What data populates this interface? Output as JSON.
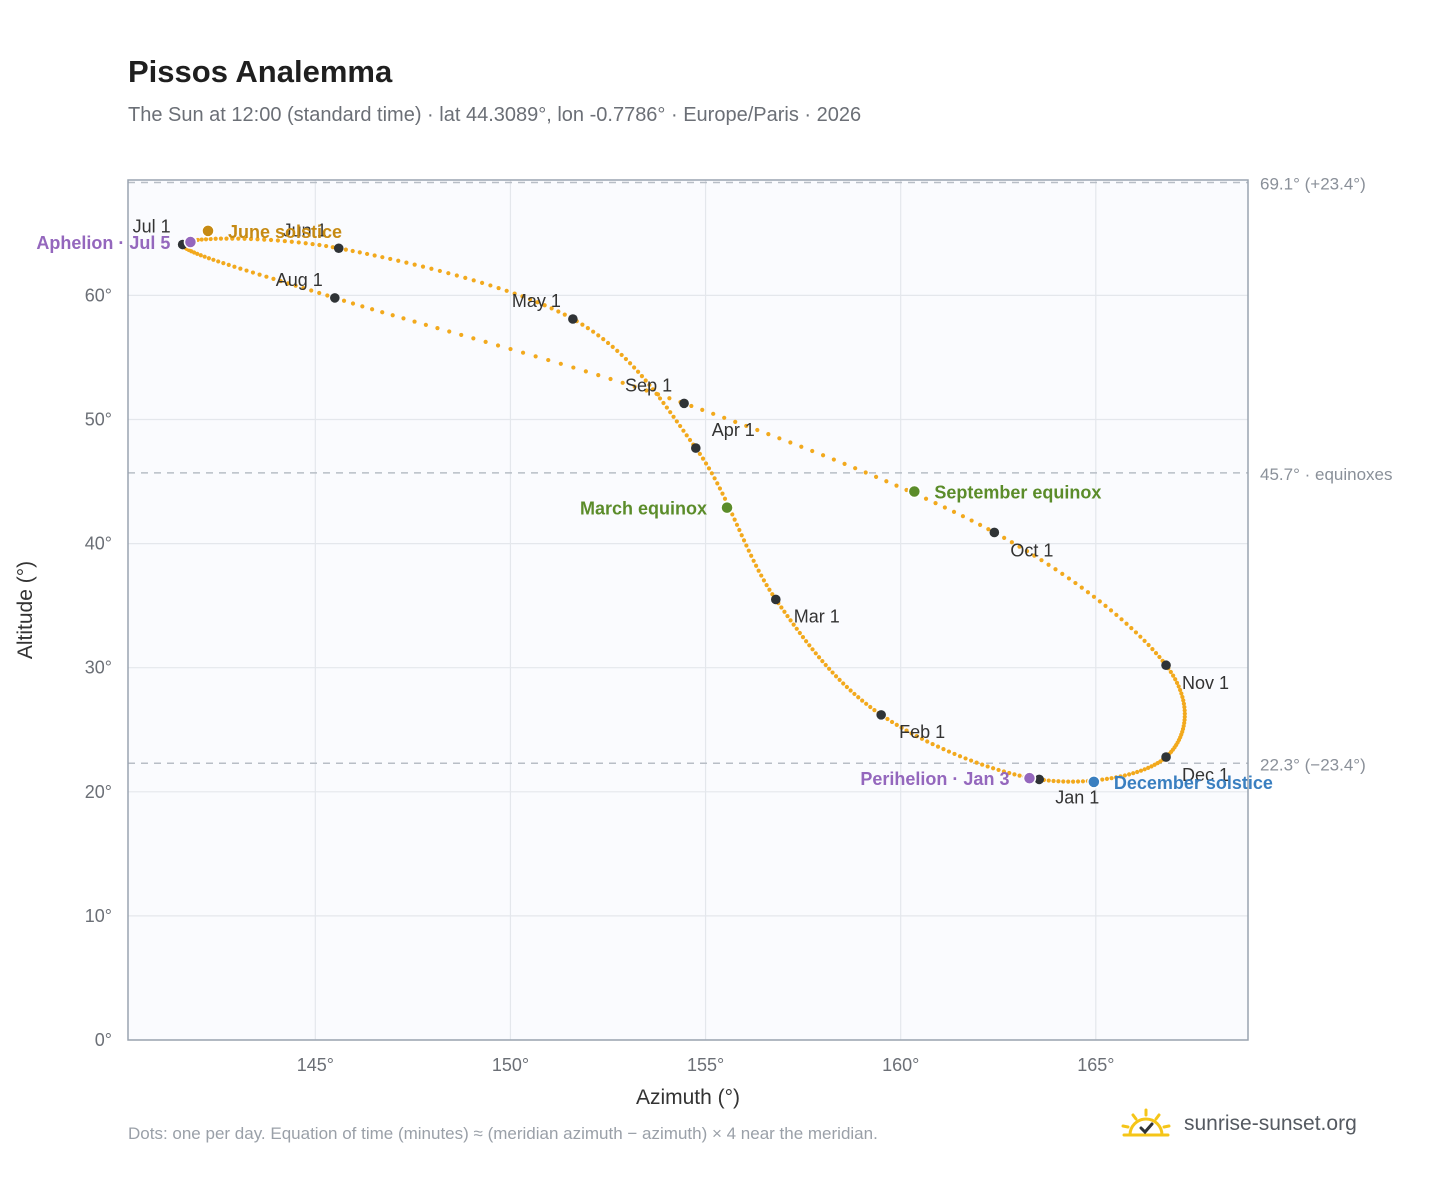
{
  "header": {
    "title": "Pissos Analemma",
    "subtitle": "The Sun at 12:00 (standard time) · lat 44.3089°, lon -0.7786° · Europe/Paris · 2026"
  },
  "footer": {
    "note": "Dots: one per day. Equation of time (minutes) ≈ (meridian azimuth − azimuth) × 4 near the meridian.",
    "brand": "sunrise-sunset.org"
  },
  "colors": {
    "curve": "#f2a91d",
    "month_marker": "#2f3336",
    "equinox": "#5b8c2a",
    "june_solstice": "#c68a13",
    "december_solstice": "#3a7fc0",
    "apsis": "#9467bd",
    "plot_bg": "#fafbfe",
    "grid": "#e4e7ec",
    "ref_line": "#b8bec6",
    "brand_sun": "#f5c518"
  },
  "chart_data": {
    "type": "scatter",
    "title": "Pissos Analemma",
    "xlabel": "Azimuth (°)",
    "ylabel": "Altitude (°)",
    "xlim": [
      140.2,
      168.9
    ],
    "ylim": [
      0,
      69.3
    ],
    "x_ticks": [
      145,
      150,
      155,
      160,
      165
    ],
    "x_tick_labels": [
      "145°",
      "150°",
      "155°",
      "160°",
      "165°"
    ],
    "y_ticks": [
      0,
      10,
      20,
      30,
      40,
      50,
      60
    ],
    "y_tick_labels": [
      "0°",
      "10°",
      "20°",
      "30°",
      "40°",
      "50°",
      "60°"
    ],
    "grid": true,
    "curve_anchors": [
      {
        "label": "Jan 1",
        "az": 163.55,
        "alt": 21.0
      },
      {
        "label": "Feb 1",
        "az": 159.5,
        "alt": 26.2
      },
      {
        "label": "Mar 1",
        "az": 156.8,
        "alt": 35.5
      },
      {
        "label": "Apr 1",
        "az": 154.75,
        "alt": 47.7
      },
      {
        "label": "May 1",
        "az": 151.6,
        "alt": 58.1
      },
      {
        "label": "Jun 1",
        "az": 145.6,
        "alt": 63.8
      },
      {
        "label": "Jul 1",
        "az": 141.6,
        "alt": 64.1
      },
      {
        "label": "Aug 1",
        "az": 145.5,
        "alt": 59.8
      },
      {
        "label": "Sep 1",
        "az": 154.45,
        "alt": 51.3
      },
      {
        "label": "Oct 1",
        "az": 162.4,
        "alt": 40.9
      },
      {
        "label": "Nov 1",
        "az": 166.8,
        "alt": 30.2
      },
      {
        "label": "Dec 1",
        "az": 166.8,
        "alt": 22.8
      },
      {
        "label": "Jan 1",
        "az": 163.55,
        "alt": 21.0
      }
    ],
    "month_markers": [
      {
        "label": "Jan 1",
        "az": 163.55,
        "alt": 21.0,
        "label_pos": "below-right"
      },
      {
        "label": "Feb 1",
        "az": 159.5,
        "alt": 26.2,
        "label_pos": "right"
      },
      {
        "label": "Mar 1",
        "az": 156.8,
        "alt": 35.5,
        "label_pos": "right"
      },
      {
        "label": "Apr 1",
        "az": 154.75,
        "alt": 47.7,
        "label_pos": "above-right"
      },
      {
        "label": "May 1",
        "az": 151.6,
        "alt": 58.1,
        "label_pos": "above-left"
      },
      {
        "label": "Jun 1",
        "az": 145.6,
        "alt": 63.8,
        "label_pos": "above-left"
      },
      {
        "label": "Jul 1",
        "az": 141.6,
        "alt": 64.1,
        "label_pos": "above-left"
      },
      {
        "label": "Aug 1",
        "az": 145.5,
        "alt": 59.8,
        "label_pos": "above-left"
      },
      {
        "label": "Sep 1",
        "az": 154.45,
        "alt": 51.3,
        "label_pos": "above-left"
      },
      {
        "label": "Oct 1",
        "az": 162.4,
        "alt": 40.9,
        "label_pos": "below-right"
      },
      {
        "label": "Nov 1",
        "az": 166.8,
        "alt": 30.2,
        "label_pos": "below-right"
      },
      {
        "label": "Dec 1",
        "az": 166.8,
        "alt": 22.8,
        "label_pos": "below-right"
      }
    ],
    "events": [
      {
        "name": "June solstice",
        "az": 142.25,
        "alt": 65.2,
        "color_key": "june_solstice",
        "label_side": "right"
      },
      {
        "name": "Aphelion · Jul 5",
        "az": 141.8,
        "alt": 64.3,
        "color_key": "apsis",
        "label_side": "left"
      },
      {
        "name": "March equinox",
        "az": 155.55,
        "alt": 42.9,
        "color_key": "equinox",
        "label_side": "left"
      },
      {
        "name": "September equinox",
        "az": 160.35,
        "alt": 44.2,
        "color_key": "equinox",
        "label_side": "right"
      },
      {
        "name": "Perihelion · Jan 3",
        "az": 163.3,
        "alt": 21.1,
        "color_key": "apsis",
        "label_side": "left"
      },
      {
        "name": "December solstice",
        "az": 164.95,
        "alt": 20.8,
        "color_key": "december_solstice",
        "label_side": "right"
      }
    ],
    "reference_lines": [
      {
        "alt": 69.1,
        "label": "69.1° (+23.4°)"
      },
      {
        "alt": 45.7,
        "label": "45.7° · equinoxes"
      },
      {
        "alt": 22.3,
        "label": "22.3° (−23.4°)"
      }
    ]
  }
}
